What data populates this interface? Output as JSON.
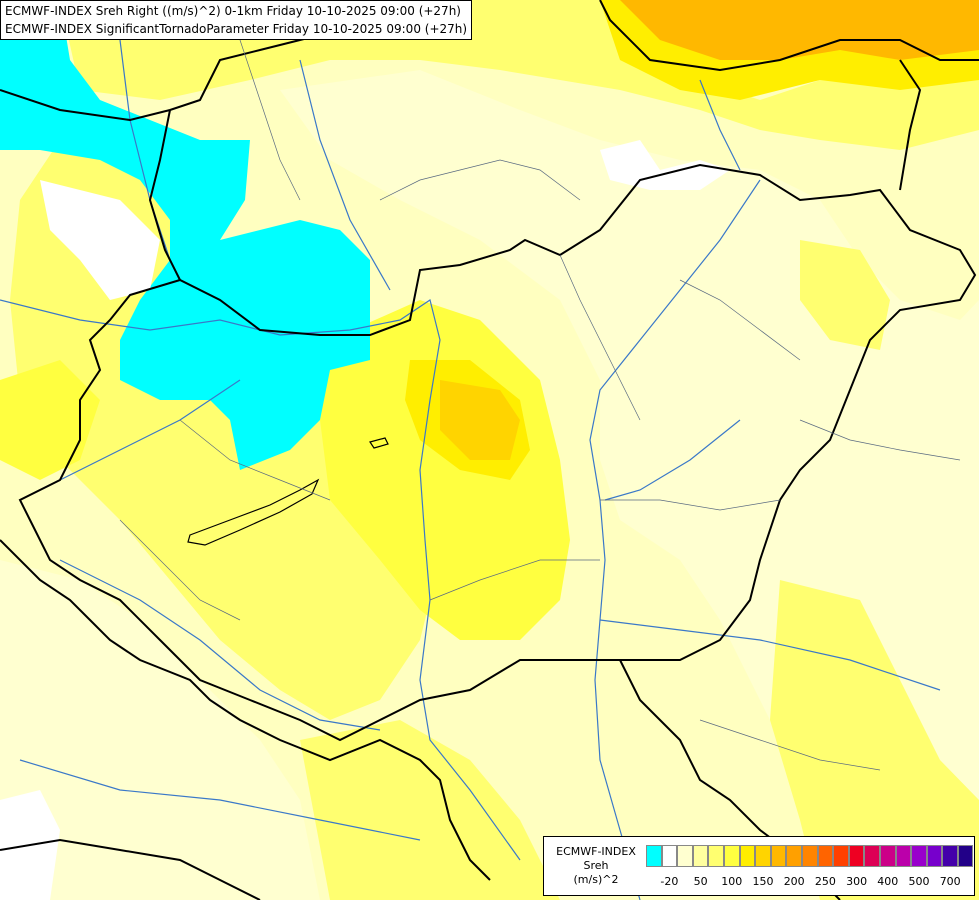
{
  "titles": {
    "line1": "ECMWF-INDEX Sreh Right ((m/s)^2) 0-1km Friday 10-10-2025 09:00 (+27h)",
    "line2": "ECMWF-INDEX SignificantTornadoParameter Friday 10-10-2025 09:00 (+27h)"
  },
  "legend": {
    "source": "ECMWF-INDEX",
    "parameter": "Sreh",
    "unit": "(m/s)^2",
    "colors": [
      "#00ffff",
      "#ffffff",
      "#ffffd0",
      "#ffffa0",
      "#ffff70",
      "#ffff40",
      "#ffee00",
      "#ffd400",
      "#ffb800",
      "#ffa000",
      "#ff8400",
      "#ff6400",
      "#ff4000",
      "#ee0022",
      "#dd0055",
      "#cc0088",
      "#bb00aa",
      "#9900cc",
      "#7700cc",
      "#4400aa",
      "#220088"
    ],
    "ticks": [
      {
        "value": "-20",
        "index": 1
      },
      {
        "value": "50",
        "index": 3
      },
      {
        "value": "100",
        "index": 5
      },
      {
        "value": "150",
        "index": 7
      },
      {
        "value": "200",
        "index": 9
      },
      {
        "value": "250",
        "index": 11
      },
      {
        "value": "300",
        "index": 13
      },
      {
        "value": "400",
        "index": 15
      },
      {
        "value": "500",
        "index": 17
      },
      {
        "value": "700",
        "index": 19
      }
    ]
  },
  "field_colors": {
    "background": "#ffffc0",
    "cyan": "#00ffff",
    "pale": "#ffffd0",
    "yellow": "#ffff70",
    "bright_yellow": "#ffff40",
    "gold": "#ffee00",
    "orange_light": "#ffd400",
    "orange": "#ffb800",
    "white": "#ffffff"
  }
}
